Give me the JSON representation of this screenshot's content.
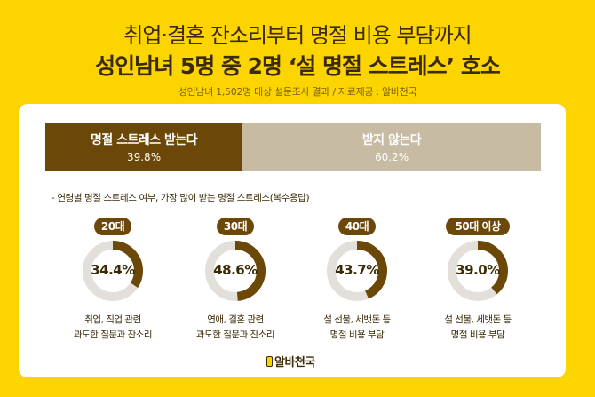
{
  "header": {
    "title_line1": "취업·결혼 잔소리부터 명절 비용 부담까지",
    "title_line2": "성인남녀 5명 중 2명 ‘설 명절 스트레스’ 호소",
    "subtitle": "성인남녀 1,502명 대상 설문조사 결과 / 자료제공 : 알바천국"
  },
  "colors": {
    "background": "#FCD500",
    "accent_dark": "#6B4807",
    "accent_light": "#C8BBA3",
    "ring_track": "#E3E0DC"
  },
  "chart_data": [
    {
      "type": "bar",
      "orientation": "horizontal-stacked",
      "categories": [
        "명절 스트레스 받는다",
        "받지 않는다"
      ],
      "values": [
        39.8,
        60.2
      ],
      "value_labels": [
        "39.8%",
        "60.2%"
      ]
    },
    {
      "type": "pie",
      "style": "donut-gauge",
      "note": "- 연령별 명절 스트레스 여부, 가장 많이 받는 명절 스트레스(복수응답)",
      "groups": [
        {
          "label": "20대",
          "value": 34.4,
          "value_label": "34.4%",
          "desc_line1": "취업, 직업 관련",
          "desc_line2": "과도한 질문과 잔소리"
        },
        {
          "label": "30대",
          "value": 48.6,
          "value_label": "48.6%",
          "desc_line1": "연애, 결혼 관련",
          "desc_line2": "과도한 질문과 잔소리"
        },
        {
          "label": "40대",
          "value": 43.7,
          "value_label": "43.7%",
          "desc_line1": "설 선물, 세뱃돈 등",
          "desc_line2": "명절 비용 부담"
        },
        {
          "label": "50대 이상",
          "value": 39.0,
          "value_label": "39.0%",
          "desc_line1": "설 선물, 세뱃돈 등",
          "desc_line2": "명절 비용 부담"
        }
      ]
    }
  ],
  "footer": {
    "logo_text": "알바천국"
  }
}
